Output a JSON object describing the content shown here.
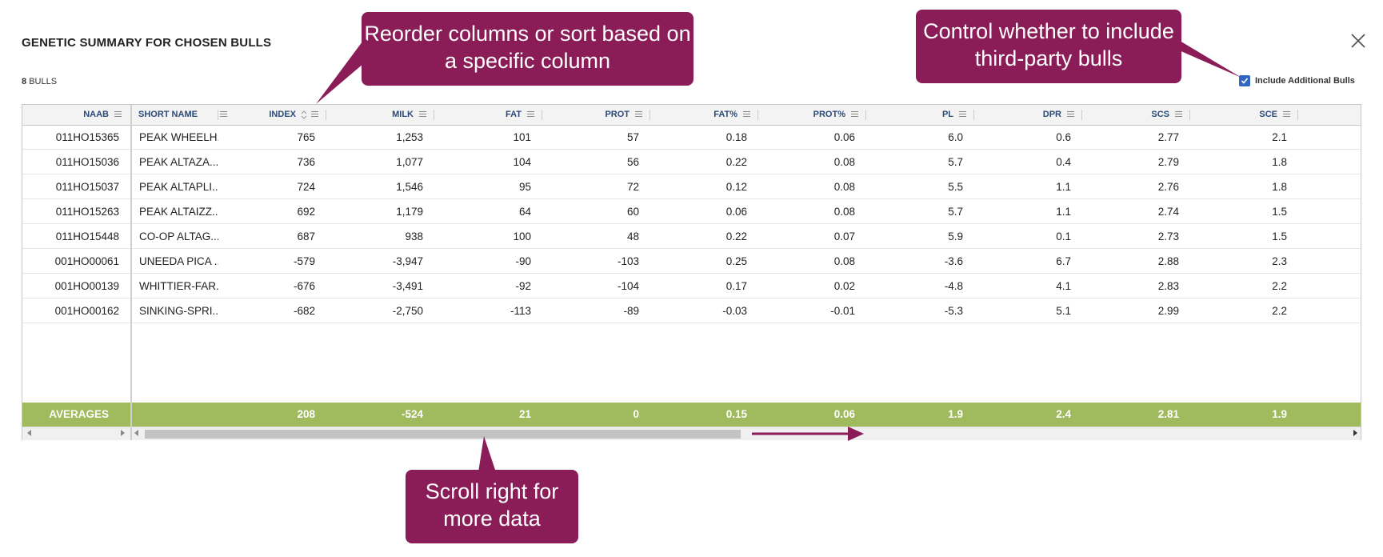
{
  "modal": {
    "title": "GENETIC SUMMARY FOR CHOSEN BULLS",
    "count_value": "8",
    "count_label": "BULLS",
    "include_label": "Include Additional Bulls",
    "include_checked": true,
    "close_icon": "close-icon"
  },
  "columns": [
    {
      "key": "naab",
      "label": "NAAB"
    },
    {
      "key": "short_name",
      "label": "SHORT NAME"
    },
    {
      "key": "index",
      "label": "INDEX"
    },
    {
      "key": "milk",
      "label": "MILK"
    },
    {
      "key": "fat",
      "label": "FAT"
    },
    {
      "key": "prot",
      "label": "PROT"
    },
    {
      "key": "fat_pct",
      "label": "FAT%"
    },
    {
      "key": "prot_pct",
      "label": "PROT%"
    },
    {
      "key": "pl",
      "label": "PL"
    },
    {
      "key": "dpr",
      "label": "DPR"
    },
    {
      "key": "scs",
      "label": "SCS"
    },
    {
      "key": "sce",
      "label": "SCE"
    }
  ],
  "rows": [
    [
      "011HO15365",
      "PEAK WHEELH...",
      "765",
      "1,253",
      "101",
      "57",
      "0.18",
      "0.06",
      "6.0",
      "0.6",
      "2.77",
      "2.1"
    ],
    [
      "011HO15036",
      "PEAK ALTAZA...",
      "736",
      "1,077",
      "104",
      "56",
      "0.22",
      "0.08",
      "5.7",
      "0.4",
      "2.79",
      "1.8"
    ],
    [
      "011HO15037",
      "PEAK ALTAPLI...",
      "724",
      "1,546",
      "95",
      "72",
      "0.12",
      "0.08",
      "5.5",
      "1.1",
      "2.76",
      "1.8"
    ],
    [
      "011HO15263",
      "PEAK ALTAIZZ...",
      "692",
      "1,179",
      "64",
      "60",
      "0.06",
      "0.08",
      "5.7",
      "1.1",
      "2.74",
      "1.5"
    ],
    [
      "011HO15448",
      "CO-OP ALTAG...",
      "687",
      "938",
      "100",
      "48",
      "0.22",
      "0.07",
      "5.9",
      "0.1",
      "2.73",
      "1.5"
    ],
    [
      "001HO00061",
      "UNEEDA PICA ...",
      "-579",
      "-3,947",
      "-90",
      "-103",
      "0.25",
      "0.08",
      "-3.6",
      "6.7",
      "2.88",
      "2.3"
    ],
    [
      "001HO00139",
      "WHITTIER-FAR...",
      "-676",
      "-3,491",
      "-92",
      "-104",
      "0.17",
      "0.02",
      "-4.8",
      "4.1",
      "2.83",
      "2.2"
    ],
    [
      "001HO00162",
      "SINKING-SPRI...",
      "-682",
      "-2,750",
      "-113",
      "-89",
      "-0.03",
      "-0.01",
      "-5.3",
      "5.1",
      "2.99",
      "2.2"
    ]
  ],
  "averages": {
    "label": "AVERAGES",
    "values": [
      "208",
      "-524",
      "21",
      "0",
      "0.15",
      "0.06",
      "1.9",
      "2.4",
      "2.81",
      "1.9"
    ]
  },
  "callouts": {
    "reorder": "Reorder columns or sort based on a specific column",
    "third_party": "Control whether to include third-party bulls",
    "scroll": "Scroll right for more data"
  },
  "colors": {
    "callout_bg": "#8a1d57",
    "averages_bg": "#a0bb5e",
    "header_text": "#2b4a78",
    "checkbox": "#2f67c2"
  }
}
